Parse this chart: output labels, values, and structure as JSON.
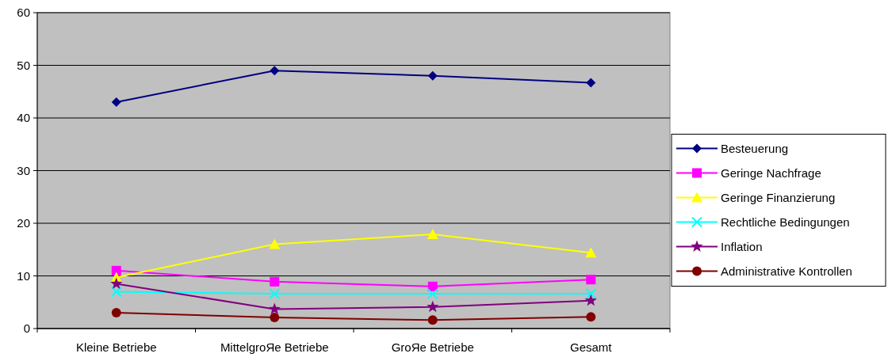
{
  "chart_data": {
    "type": "line",
    "categories": [
      "Kleine Betriebe",
      "MittelgroЯe Betriebe",
      "GroЯe Betriebe",
      "Gesamt"
    ],
    "series": [
      {
        "name": "Besteuerung",
        "color": "#000080",
        "marker": "diamond",
        "values": [
          43,
          49,
          48,
          46.7
        ]
      },
      {
        "name": "Geringe Nachfrage",
        "color": "#ff00ff",
        "marker": "square",
        "values": [
          11,
          8.9,
          8,
          9.3
        ]
      },
      {
        "name": "Geringe Finanzierung",
        "color": "#ffff00",
        "marker": "triangle",
        "values": [
          9.7,
          16,
          17.9,
          14.4
        ]
      },
      {
        "name": "Rechtliche Bedingungen",
        "color": "#00ffff",
        "marker": "cross",
        "values": [
          7,
          6.6,
          6.6,
          6.6
        ]
      },
      {
        "name": "Inflation",
        "color": "#800080",
        "marker": "star",
        "values": [
          8.5,
          3.7,
          4.1,
          5.3
        ]
      },
      {
        "name": "Administrative Kontrollen",
        "color": "#800000",
        "marker": "circle",
        "values": [
          3,
          2.1,
          1.6,
          2.2
        ]
      }
    ],
    "ylim": [
      0,
      60
    ],
    "yticks": [
      0,
      10,
      20,
      30,
      40,
      50,
      60
    ],
    "grid": "y",
    "legend": "right"
  }
}
